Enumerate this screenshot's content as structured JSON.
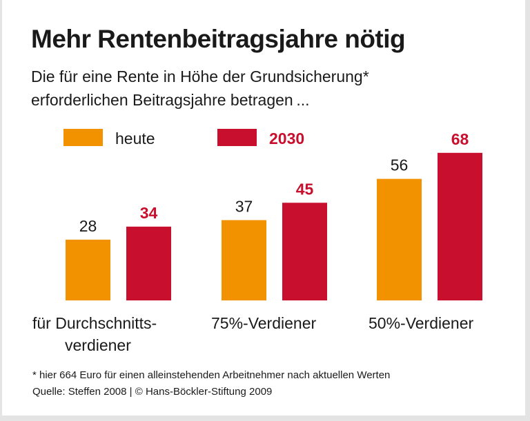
{
  "title": "Mehr Rentenbeitragsjahre nötig",
  "subtitle_lines": [
    "Die für eine Rente in Höhe der Grundsicherung*",
    "erforderlichen Beitragsjahre betragen ..."
  ],
  "footnote": "* hier 664 Euro für einen alleinstehenden Arbeitnehmer nach aktuellen Werten",
  "source": "Quelle: Steffen 2008 | © Hans-Böckler-Stiftung 2009",
  "chart_data": {
    "type": "bar",
    "title": "Mehr Rentenbeitragsjahre nötig",
    "categories": [
      [
        "für Durchschnitts-",
        "verdiener"
      ],
      [
        "75%-Verdiener"
      ],
      [
        "50%-Verdiener"
      ]
    ],
    "series": [
      {
        "name": "heute",
        "values": [
          28,
          37,
          56
        ],
        "color": "#f39200",
        "label_color": "#1a1a1a"
      },
      {
        "name": "2030",
        "values": [
          34,
          45,
          68
        ],
        "color": "#c8102e",
        "label_color": "#c8102e"
      }
    ],
    "legend": "top-left",
    "grid": false,
    "ylim": [
      0,
      70
    ]
  }
}
